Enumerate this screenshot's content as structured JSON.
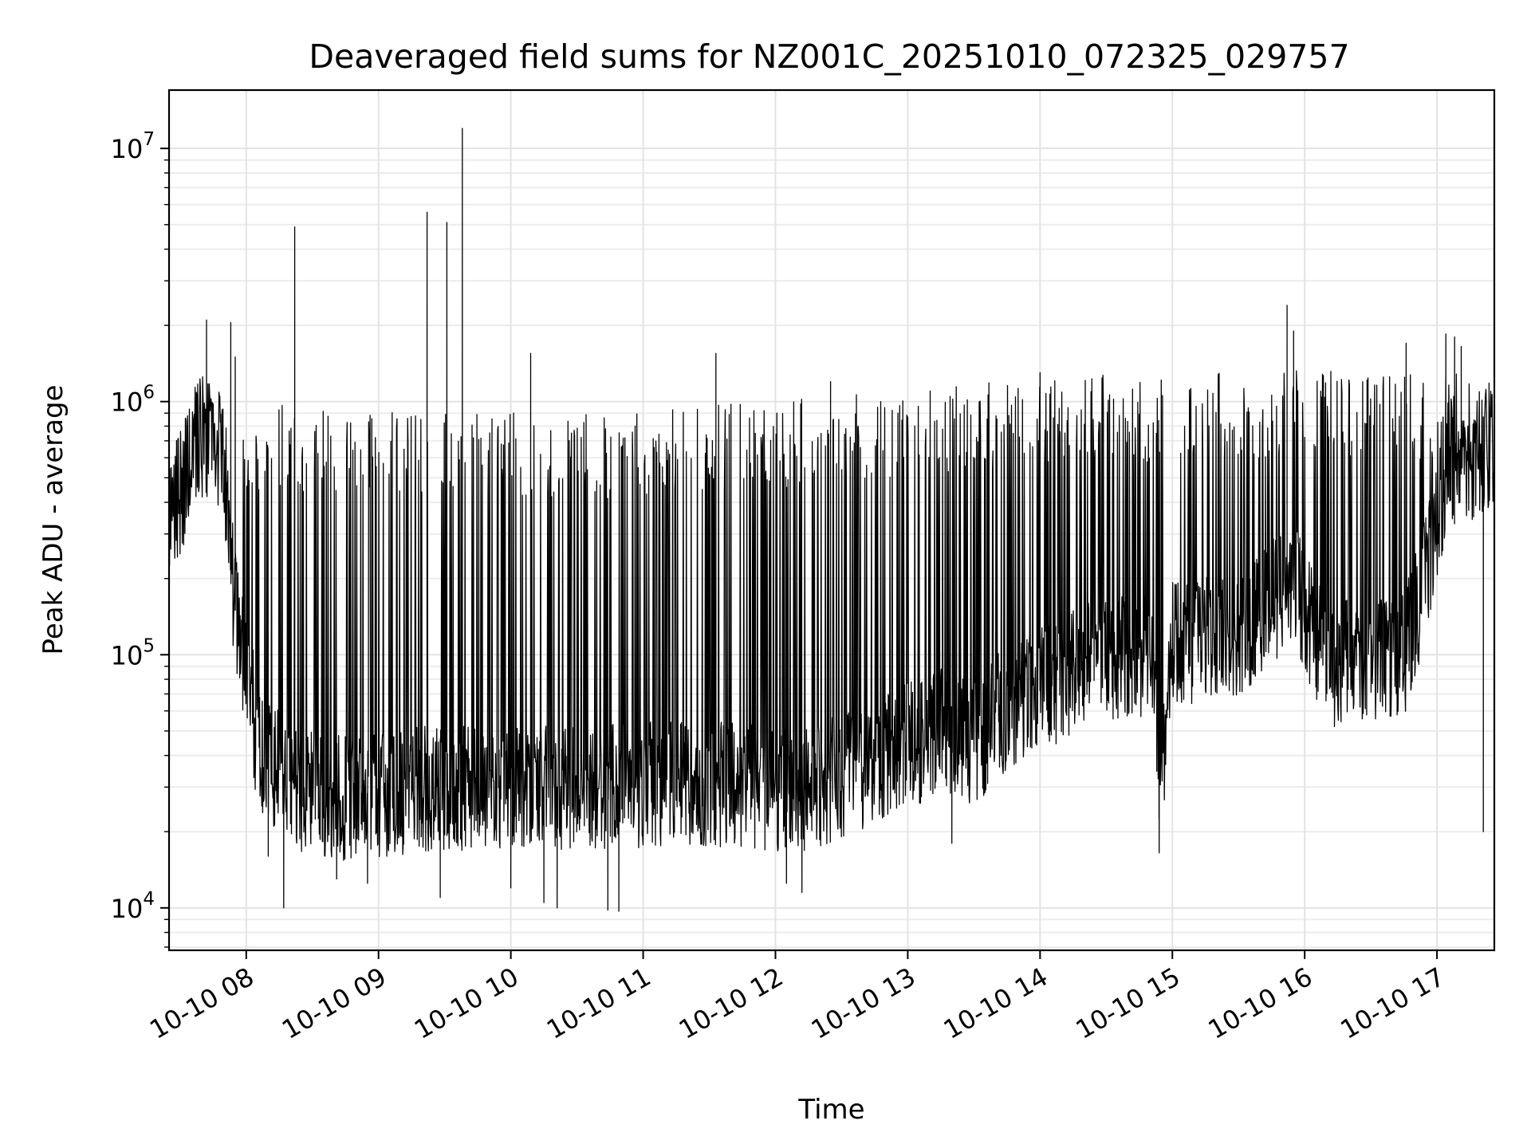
{
  "chart_data": {
    "type": "line",
    "title": "Deaveraged field sums for NZ001C_20251010_072325_029757",
    "xlabel": "Time",
    "ylabel": "Peak ADU - average",
    "x_axis": {
      "kind": "date",
      "range": [
        "2025-10-10T07:25:00",
        "2025-10-10T17:26:00"
      ],
      "ticks": [
        "10-10 08",
        "10-10 09",
        "10-10 10",
        "10-10 11",
        "10-10 12",
        "10-10 13",
        "10-10 14",
        "10-10 15",
        "10-10 16",
        "10-10 17"
      ]
    },
    "y_axis": {
      "scale": "log",
      "range": [
        6800,
        17000000
      ],
      "tick_values": [
        10000,
        100000,
        1000000,
        10000000
      ],
      "tick_labels": [
        {
          "base": "10",
          "exp": "4"
        },
        {
          "base": "10",
          "exp": "5"
        },
        {
          "base": "10",
          "exp": "6"
        },
        {
          "base": "10",
          "exp": "7"
        }
      ]
    },
    "grid": "on",
    "legend": "none",
    "line_color": "#000000",
    "series": [
      {
        "baseline": [
          [
            "2025-10-10T07:25:00",
            340000
          ],
          [
            "2025-10-10T07:33:00",
            520000
          ],
          [
            "2025-10-10T07:38:00",
            760000
          ],
          [
            "2025-10-10T07:45:00",
            650000
          ],
          [
            "2025-10-10T07:50:00",
            620000
          ],
          [
            "2025-10-10T07:52:00",
            300000
          ],
          [
            "2025-10-10T07:55:00",
            150000
          ],
          [
            "2025-10-10T08:00:00",
            90000
          ],
          [
            "2025-10-10T08:05:00",
            45000
          ],
          [
            "2025-10-10T08:20:00",
            30000
          ],
          [
            "2025-10-10T08:45:00",
            27000
          ],
          [
            "2025-10-10T09:30:00",
            30000
          ],
          [
            "2025-10-10T10:30:00",
            30000
          ],
          [
            "2025-10-10T11:30:00",
            31000
          ],
          [
            "2025-10-10T12:15:00",
            29000
          ],
          [
            "2025-10-10T12:45:00",
            38000
          ],
          [
            "2025-10-10T13:15:00",
            50000
          ],
          [
            "2025-10-10T13:30:00",
            45000
          ],
          [
            "2025-10-10T13:45:00",
            62000
          ],
          [
            "2025-10-10T14:10:00",
            80000
          ],
          [
            "2025-10-10T14:30:00",
            100000
          ],
          [
            "2025-10-10T14:50:00",
            95000
          ],
          [
            "2025-10-10T14:55:00",
            30000
          ],
          [
            "2025-10-10T15:00:00",
            110000
          ],
          [
            "2025-10-10T15:30:00",
            120000
          ],
          [
            "2025-10-10T15:55:00",
            200000
          ],
          [
            "2025-10-10T16:10:00",
            90000
          ],
          [
            "2025-10-10T16:45:00",
            100000
          ],
          [
            "2025-10-10T16:56:00",
            220000
          ],
          [
            "2025-10-10T17:05:00",
            560000
          ],
          [
            "2025-10-10T17:20:00",
            620000
          ],
          [
            "2025-10-10T17:26:00",
            700000
          ]
        ],
        "spikes": [
          [
            "2025-10-10T07:42:00",
            2100000
          ],
          [
            "2025-10-10T07:53:00",
            2050000
          ],
          [
            "2025-10-10T07:55:00",
            1500000
          ],
          [
            "2025-10-10T08:22:00",
            4900000
          ],
          [
            "2025-10-10T09:22:00",
            5600000
          ],
          [
            "2025-10-10T09:31:00",
            5100000
          ],
          [
            "2025-10-10T09:38:00",
            12000000
          ],
          [
            "2025-10-10T10:09:00",
            1550000
          ],
          [
            "2025-10-10T11:33:00",
            1550000
          ],
          [
            "2025-10-10T12:25:00",
            1200000
          ],
          [
            "2025-10-10T14:00:00",
            1300000
          ],
          [
            "2025-10-10T15:52:00",
            2400000
          ],
          [
            "2025-10-10T15:55:00",
            1900000
          ],
          [
            "2025-10-10T16:46:00",
            1700000
          ],
          [
            "2025-10-10T17:04:00",
            1850000
          ],
          [
            "2025-10-10T17:08:00",
            1800000
          ],
          [
            "2025-10-10T17:11:00",
            1650000
          ]
        ],
        "dips": [
          [
            "2025-10-10T08:10:00",
            16000
          ],
          [
            "2025-10-10T08:17:00",
            10000
          ],
          [
            "2025-10-10T08:41:00",
            13000
          ],
          [
            "2025-10-10T08:55:00",
            12500
          ],
          [
            "2025-10-10T09:28:00",
            11000
          ],
          [
            "2025-10-10T10:00:00",
            12000
          ],
          [
            "2025-10-10T10:15:00",
            10500
          ],
          [
            "2025-10-10T10:21:00",
            10000
          ],
          [
            "2025-10-10T10:44:00",
            9800
          ],
          [
            "2025-10-10T10:49:00",
            9700
          ],
          [
            "2025-10-10T12:05:00",
            12500
          ],
          [
            "2025-10-10T12:12:00",
            11500
          ],
          [
            "2025-10-10T13:20:00",
            18000
          ],
          [
            "2025-10-10T14:54:00",
            16500
          ],
          [
            "2025-10-10T17:21:00",
            20000
          ]
        ],
        "upper_envelope": [
          [
            "2025-10-10T08:00:00",
            980000
          ],
          [
            "2025-10-10T09:00:00",
            960000
          ],
          [
            "2025-10-10T10:00:00",
            920000
          ],
          [
            "2025-10-10T11:00:00",
            930000
          ],
          [
            "2025-10-10T11:55:00",
            1000000
          ],
          [
            "2025-10-10T12:30:00",
            1050000
          ],
          [
            "2025-10-10T13:00:00",
            1150000
          ],
          [
            "2025-10-10T14:00:00",
            1250000
          ],
          [
            "2025-10-10T15:00:00",
            1300000
          ],
          [
            "2025-10-10T16:00:00",
            1350000
          ],
          [
            "2025-10-10T17:00:00",
            1300000
          ]
        ]
      }
    ]
  }
}
